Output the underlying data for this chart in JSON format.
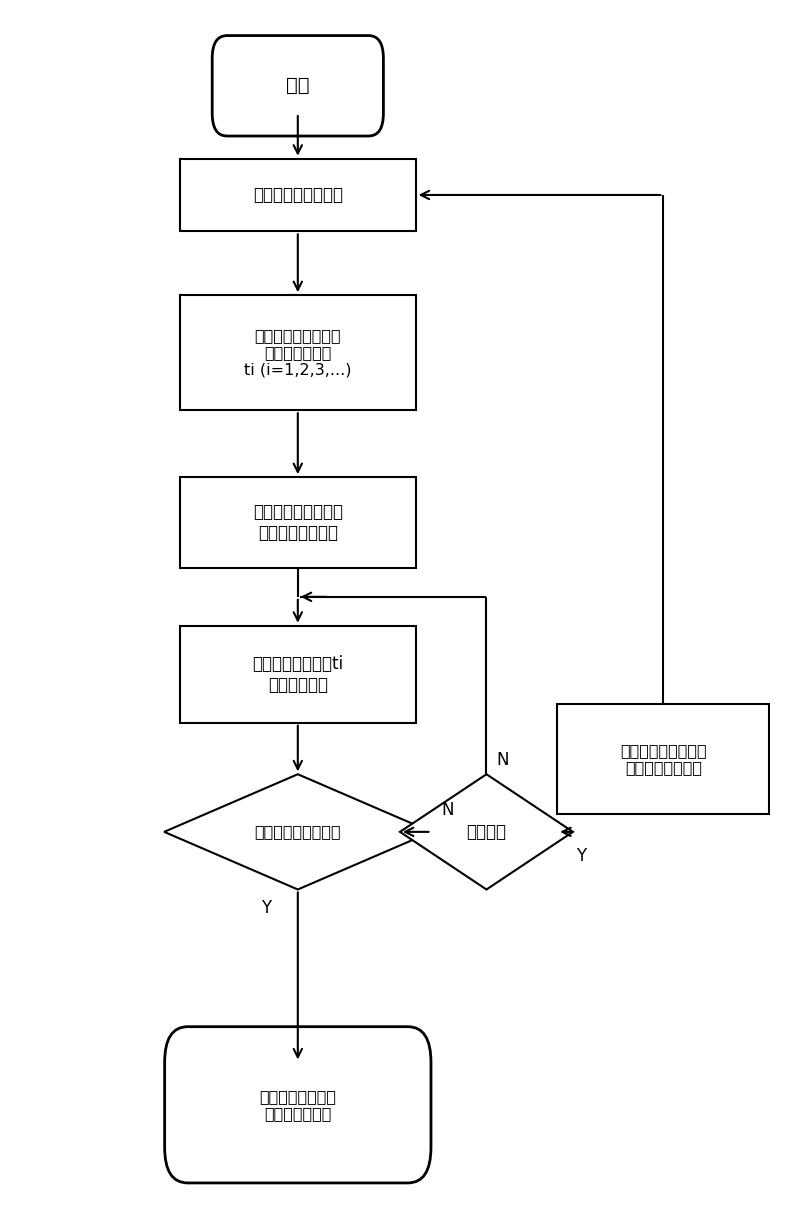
{
  "bg_color": "#ffffff",
  "line_color": "#000000",
  "text_color": "#000000",
  "font_size": 12,
  "figsize": [
    8.0,
    12.27
  ],
  "dpi": 100,
  "nodes": {
    "start": {
      "label": "开始"
    },
    "box1": {
      "label": "计算转子初始位置角"
    },
    "box2": {
      "label": "计算低速阶段逆变桥\n各强迫换相时刻\nti (i=1,2,3,...)"
    },
    "box3": {
      "label": "变频器解锁，发第一\n组逆变桥触发脉冲"
    },
    "box4": {
      "label": "在强迫换相点时刻ti\n进行强迫换向"
    },
    "diamond1": {
      "label": "是否达到自然换相点"
    },
    "diamond2": {
      "label": "是否超时"
    },
    "box5": {
      "label": "停机，并重设变频启\n动的恒定加速度值"
    },
    "end": {
      "label": "低速运行阶段结束\n切换至自然换相"
    }
  }
}
